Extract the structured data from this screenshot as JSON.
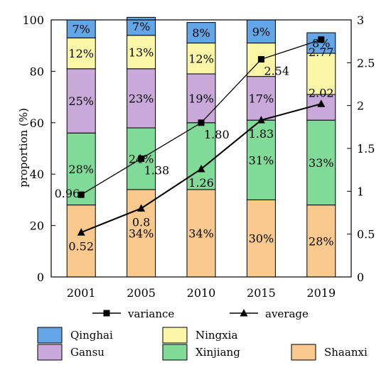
{
  "chart_data": {
    "type": "bar",
    "stacked": true,
    "categories": [
      "2001",
      "2005",
      "2010",
      "2015",
      "2019"
    ],
    "ylabel": "proportion (%)",
    "ylim": [
      0,
      100
    ],
    "y_ticks": [
      "0",
      "20",
      "40",
      "60",
      "80",
      "100"
    ],
    "y2lim": [
      0,
      3
    ],
    "y2_ticks": [
      "0",
      "0.5",
      "1",
      "1.5",
      "2",
      "2.5",
      "3"
    ],
    "grid": false,
    "series": [
      {
        "name": "Shaanxi",
        "color": "#f9c98e",
        "values": [
          28,
          34,
          34,
          30,
          28
        ],
        "labels": [
          "",
          "34%",
          "34%",
          "30%",
          "28%"
        ]
      },
      {
        "name": "Xinjiang",
        "color": "#80db99",
        "values": [
          28,
          24,
          26,
          31,
          33
        ],
        "labels": [
          "28%",
          "24%",
          "",
          "31%",
          "33%"
        ]
      },
      {
        "name": "Gansu",
        "color": "#c9a8da",
        "values": [
          25,
          23,
          19,
          17,
          10
        ],
        "labels": [
          "25%",
          "23%",
          "19%",
          "17%",
          ""
        ]
      },
      {
        "name": "Ningxia",
        "color": "#fcf7a6",
        "values": [
          12,
          13,
          12,
          13,
          16
        ],
        "labels": [
          "12%",
          "13%",
          "12%",
          "",
          ""
        ]
      },
      {
        "name": "Qinghai",
        "color": "#63a6e8",
        "values": [
          7,
          7,
          8,
          9,
          8
        ],
        "labels": [
          "7%",
          "7%",
          "8%",
          "9%",
          "8%"
        ]
      }
    ],
    "lines": [
      {
        "name": "variance",
        "marker": "square",
        "values": [
          0.96,
          1.38,
          1.8,
          2.54,
          2.77
        ],
        "labels": [
          "0.96",
          "1.38",
          "1.80",
          "2.54",
          "2.77"
        ]
      },
      {
        "name": "average",
        "marker": "triangle",
        "values": [
          0.52,
          0.8,
          1.26,
          1.83,
          2.02
        ],
        "labels": [
          "0.52",
          "0.8",
          "1.26",
          "1.83",
          "2.02"
        ]
      }
    ],
    "legend": {
      "lines_position": "bottom",
      "bars_position": "bottom",
      "line_entries": [
        "variance",
        "average"
      ],
      "bar_entries": [
        "Qinghai",
        "Ningxia",
        "Shaanxi",
        "Gansu",
        "Xinjiang"
      ]
    }
  }
}
